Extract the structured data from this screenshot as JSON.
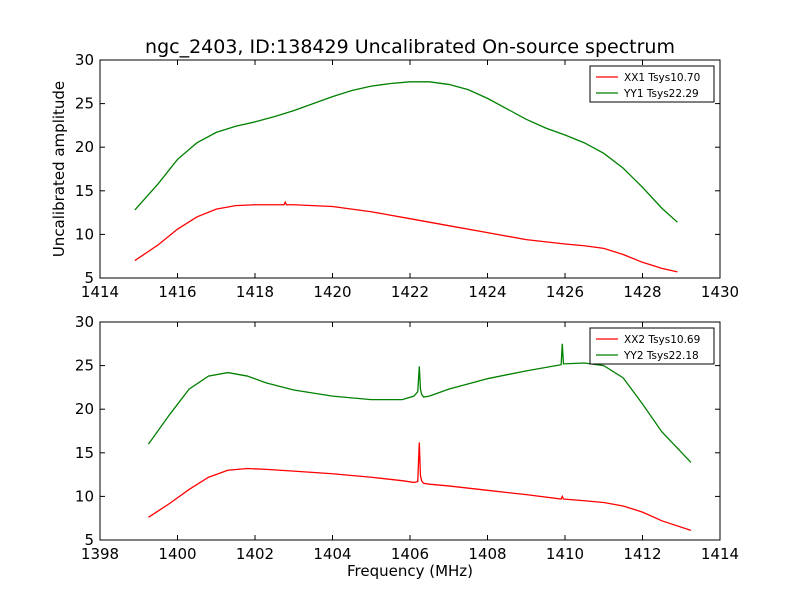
{
  "title": "ngc_2403, ID:138429 Uncalibrated On-source spectrum",
  "chart_data": [
    {
      "type": "line",
      "xlabel": "",
      "ylabel": "Uncalibrated amplitude",
      "xlim": [
        1414,
        1430
      ],
      "ylim": [
        5,
        30
      ],
      "xticks": [
        1414,
        1416,
        1418,
        1420,
        1422,
        1424,
        1426,
        1428,
        1430
      ],
      "yticks": [
        5,
        10,
        15,
        20,
        25,
        30
      ],
      "grid": false,
      "legend_position": "top-right",
      "series": [
        {
          "name": "XX1 Tsys10.70",
          "color": "#ff0000",
          "x": [
            1414.9,
            1415.5,
            1416.0,
            1416.5,
            1417.0,
            1417.5,
            1418.0,
            1418.5,
            1418.75,
            1418.78,
            1418.81,
            1418.84,
            1419.0,
            1420.0,
            1421.0,
            1422.0,
            1423.0,
            1424.0,
            1425.0,
            1426.0,
            1426.5,
            1427.0,
            1427.5,
            1428.0,
            1428.5,
            1428.9
          ],
          "y": [
            7.0,
            8.8,
            10.6,
            12.0,
            12.9,
            13.3,
            13.4,
            13.4,
            13.4,
            13.7,
            13.4,
            13.4,
            13.4,
            13.2,
            12.6,
            11.8,
            11.0,
            10.2,
            9.4,
            8.9,
            8.7,
            8.4,
            7.7,
            6.8,
            6.1,
            5.7
          ]
        },
        {
          "name": "YY1 Tsys22.29",
          "color": "#008000",
          "x": [
            1414.9,
            1415.5,
            1416.0,
            1416.5,
            1417.0,
            1417.5,
            1418.0,
            1418.5,
            1419.0,
            1419.5,
            1420.0,
            1420.5,
            1421.0,
            1421.5,
            1422.0,
            1422.5,
            1423.0,
            1423.5,
            1424.0,
            1424.5,
            1425.0,
            1425.5,
            1426.0,
            1426.5,
            1427.0,
            1427.5,
            1428.0,
            1428.5,
            1428.9
          ],
          "y": [
            12.8,
            15.8,
            18.6,
            20.5,
            21.7,
            22.4,
            22.9,
            23.5,
            24.2,
            25.0,
            25.8,
            26.5,
            27.0,
            27.3,
            27.5,
            27.5,
            27.2,
            26.6,
            25.6,
            24.4,
            23.2,
            22.2,
            21.4,
            20.5,
            19.3,
            17.6,
            15.4,
            13.0,
            11.4
          ]
        }
      ]
    },
    {
      "type": "line",
      "xlabel": "Frequency (MHz)",
      "ylabel": "",
      "xlim": [
        1398,
        1414
      ],
      "ylim": [
        5,
        30
      ],
      "xticks": [
        1398,
        1400,
        1402,
        1404,
        1406,
        1408,
        1410,
        1412,
        1414
      ],
      "yticks": [
        5,
        10,
        15,
        20,
        25,
        30
      ],
      "grid": false,
      "legend_position": "top-right",
      "series": [
        {
          "name": "XX2 Tsys10.69",
          "color": "#ff0000",
          "x": [
            1399.25,
            1399.8,
            1400.3,
            1400.8,
            1401.3,
            1401.8,
            1402.3,
            1403.0,
            1404.0,
            1405.0,
            1405.8,
            1406.1,
            1406.2,
            1406.24,
            1406.27,
            1406.3,
            1406.35,
            1406.5,
            1407.0,
            1408.0,
            1409.0,
            1409.9,
            1409.93,
            1409.96,
            1410.5,
            1411.0,
            1411.5,
            1412.0,
            1412.5,
            1413.25
          ],
          "y": [
            7.6,
            9.2,
            10.8,
            12.2,
            13.0,
            13.2,
            13.1,
            12.9,
            12.6,
            12.2,
            11.8,
            11.6,
            11.7,
            16.2,
            12.4,
            11.8,
            11.5,
            11.4,
            11.2,
            10.7,
            10.2,
            9.7,
            10.0,
            9.7,
            9.5,
            9.3,
            8.9,
            8.2,
            7.2,
            6.1
          ]
        },
        {
          "name": "YY2 Tsys22.18",
          "color": "#008000",
          "x": [
            1399.25,
            1399.8,
            1400.3,
            1400.8,
            1401.3,
            1401.8,
            1402.3,
            1403.0,
            1404.0,
            1405.0,
            1405.8,
            1406.1,
            1406.2,
            1406.24,
            1406.27,
            1406.3,
            1406.35,
            1406.5,
            1407.0,
            1408.0,
            1409.0,
            1409.9,
            1409.93,
            1409.96,
            1410.5,
            1411.0,
            1411.5,
            1412.0,
            1412.5,
            1413.25
          ],
          "y": [
            16.0,
            19.4,
            22.3,
            23.8,
            24.2,
            23.8,
            23.0,
            22.2,
            21.5,
            21.1,
            21.1,
            21.5,
            22.0,
            24.9,
            22.3,
            21.7,
            21.4,
            21.5,
            22.3,
            23.5,
            24.4,
            25.1,
            27.5,
            25.2,
            25.3,
            25.0,
            23.6,
            20.6,
            17.4,
            13.9
          ]
        }
      ]
    }
  ]
}
